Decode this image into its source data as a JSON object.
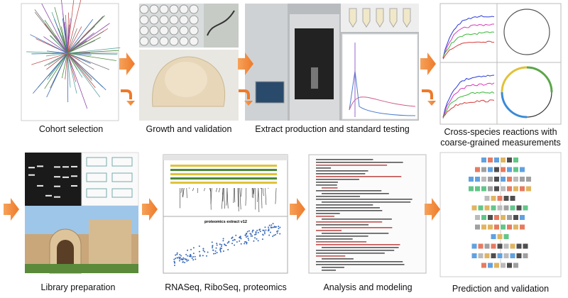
{
  "panels": [
    {
      "caption": "Cohort selection"
    },
    {
      "caption": "Growth and validation"
    },
    {
      "caption": "Extract production and standard testing"
    },
    {
      "caption_lines": [
        "Cross-species reactions with",
        "coarse-grained measurements"
      ]
    },
    {
      "caption": "Library preparation"
    },
    {
      "caption": "RNASeq, RiboSeq, proteomics"
    },
    {
      "caption": "Analysis and modeling"
    },
    {
      "caption": "Prediction and validation"
    }
  ],
  "plot_title": "proteomics extract v12"
}
